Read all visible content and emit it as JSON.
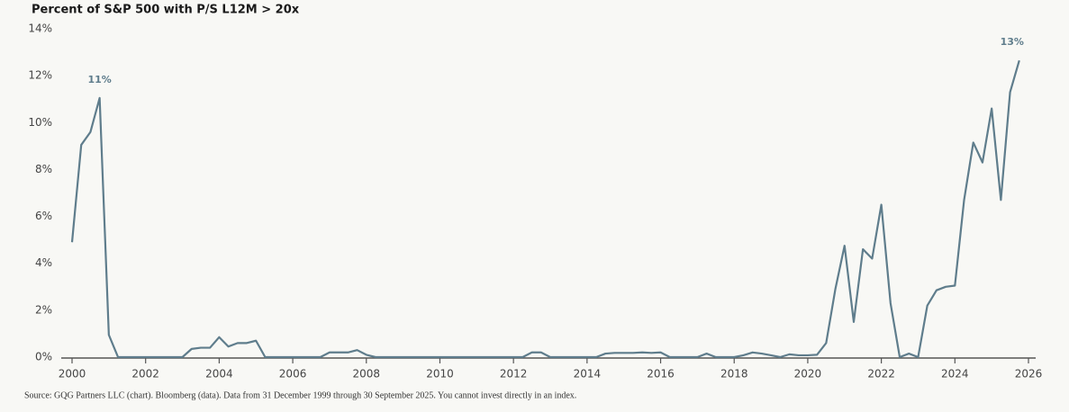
{
  "chart_data": {
    "type": "line",
    "title": "Percent of S&P 500 with P/S L12M > 20x",
    "source": "Source: GQG Partners LLC (chart). Bloomberg (data). Data from 31 December 1999 through 30 September 2025. You cannot invest directly in an index.",
    "annotations": [
      "11%",
      "13%"
    ],
    "x": [
      2000,
      2000.25,
      2000.5,
      2000.75,
      2001,
      2001.25,
      2001.5,
      2001.75,
      2002,
      2002.25,
      2002.5,
      2002.75,
      2003,
      2003.25,
      2003.5,
      2003.75,
      2004,
      2004.25,
      2004.5,
      2004.75,
      2005,
      2005.25,
      2005.5,
      2005.75,
      2006,
      2006.25,
      2006.5,
      2006.75,
      2007,
      2007.25,
      2007.5,
      2007.75,
      2008,
      2008.25,
      2008.5,
      2008.75,
      2009,
      2009.25,
      2009.5,
      2009.75,
      2010,
      2010.25,
      2010.5,
      2010.75,
      2011,
      2011.25,
      2011.5,
      2011.75,
      2012,
      2012.25,
      2012.5,
      2012.75,
      2013,
      2013.25,
      2013.5,
      2013.75,
      2014,
      2014.25,
      2014.5,
      2014.75,
      2015,
      2015.25,
      2015.5,
      2015.75,
      2016,
      2016.25,
      2016.5,
      2016.75,
      2017,
      2017.25,
      2017.5,
      2017.75,
      2018,
      2018.25,
      2018.5,
      2018.75,
      2019,
      2019.25,
      2019.5,
      2019.75,
      2020,
      2020.25,
      2020.5,
      2020.75,
      2021,
      2021.25,
      2021.5,
      2021.75,
      2022,
      2022.25,
      2022.5,
      2022.75,
      2023,
      2023.25,
      2023.5,
      2023.75,
      2024,
      2024.25,
      2024.5,
      2024.75,
      2025,
      2025.25,
      2025.5,
      2025.75
    ],
    "series": [
      {
        "name": "Percent of S&P 500 with P/S L12M > 20x",
        "color": "#5f7d8c",
        "values": [
          4.9,
          9.05,
          9.6,
          11.05,
          0.95,
          0,
          0,
          0,
          0,
          0,
          0,
          0,
          0,
          0.35,
          0.4,
          0.4,
          0.85,
          0.45,
          0.6,
          0.6,
          0.7,
          0,
          0,
          0,
          0,
          0,
          0,
          0,
          0.2,
          0.2,
          0.2,
          0.3,
          0.1,
          0,
          0,
          0,
          0,
          0,
          0,
          0,
          0,
          0,
          0,
          0,
          0,
          0,
          0,
          0,
          0,
          0,
          0.2,
          0.2,
          0,
          0,
          0,
          0,
          0,
          0,
          0.15,
          0.18,
          0.18,
          0.18,
          0.2,
          0.18,
          0.2,
          0,
          0,
          0,
          0,
          0.15,
          0,
          0,
          0,
          0.08,
          0.2,
          0.15,
          0.08,
          0,
          0.12,
          0.08,
          0.08,
          0.1,
          0.6,
          2.9,
          4.75,
          1.5,
          4.6,
          4.2,
          6.5,
          2.3,
          0,
          0.15,
          0,
          2.2,
          2.85,
          3.0,
          3.05,
          6.7,
          9.15,
          8.3,
          10.6,
          6.7,
          11.3,
          12.65
        ]
      }
    ],
    "xlim": [
      2000,
      2026
    ],
    "xticks": [
      2000,
      2002,
      2004,
      2006,
      2008,
      2010,
      2012,
      2014,
      2016,
      2018,
      2020,
      2022,
      2024,
      2026
    ],
    "ylim": [
      0,
      14
    ],
    "yticks": [
      {
        "value": 0,
        "label": "0%"
      },
      {
        "value": 2,
        "label": "2%"
      },
      {
        "value": 4,
        "label": "4%"
      },
      {
        "value": 6,
        "label": "6%"
      },
      {
        "value": 8,
        "label": "8%"
      },
      {
        "value": 10,
        "label": "10%"
      },
      {
        "value": 12,
        "label": "12%"
      },
      {
        "value": 14,
        "label": "14%"
      }
    ],
    "grid": false
  }
}
